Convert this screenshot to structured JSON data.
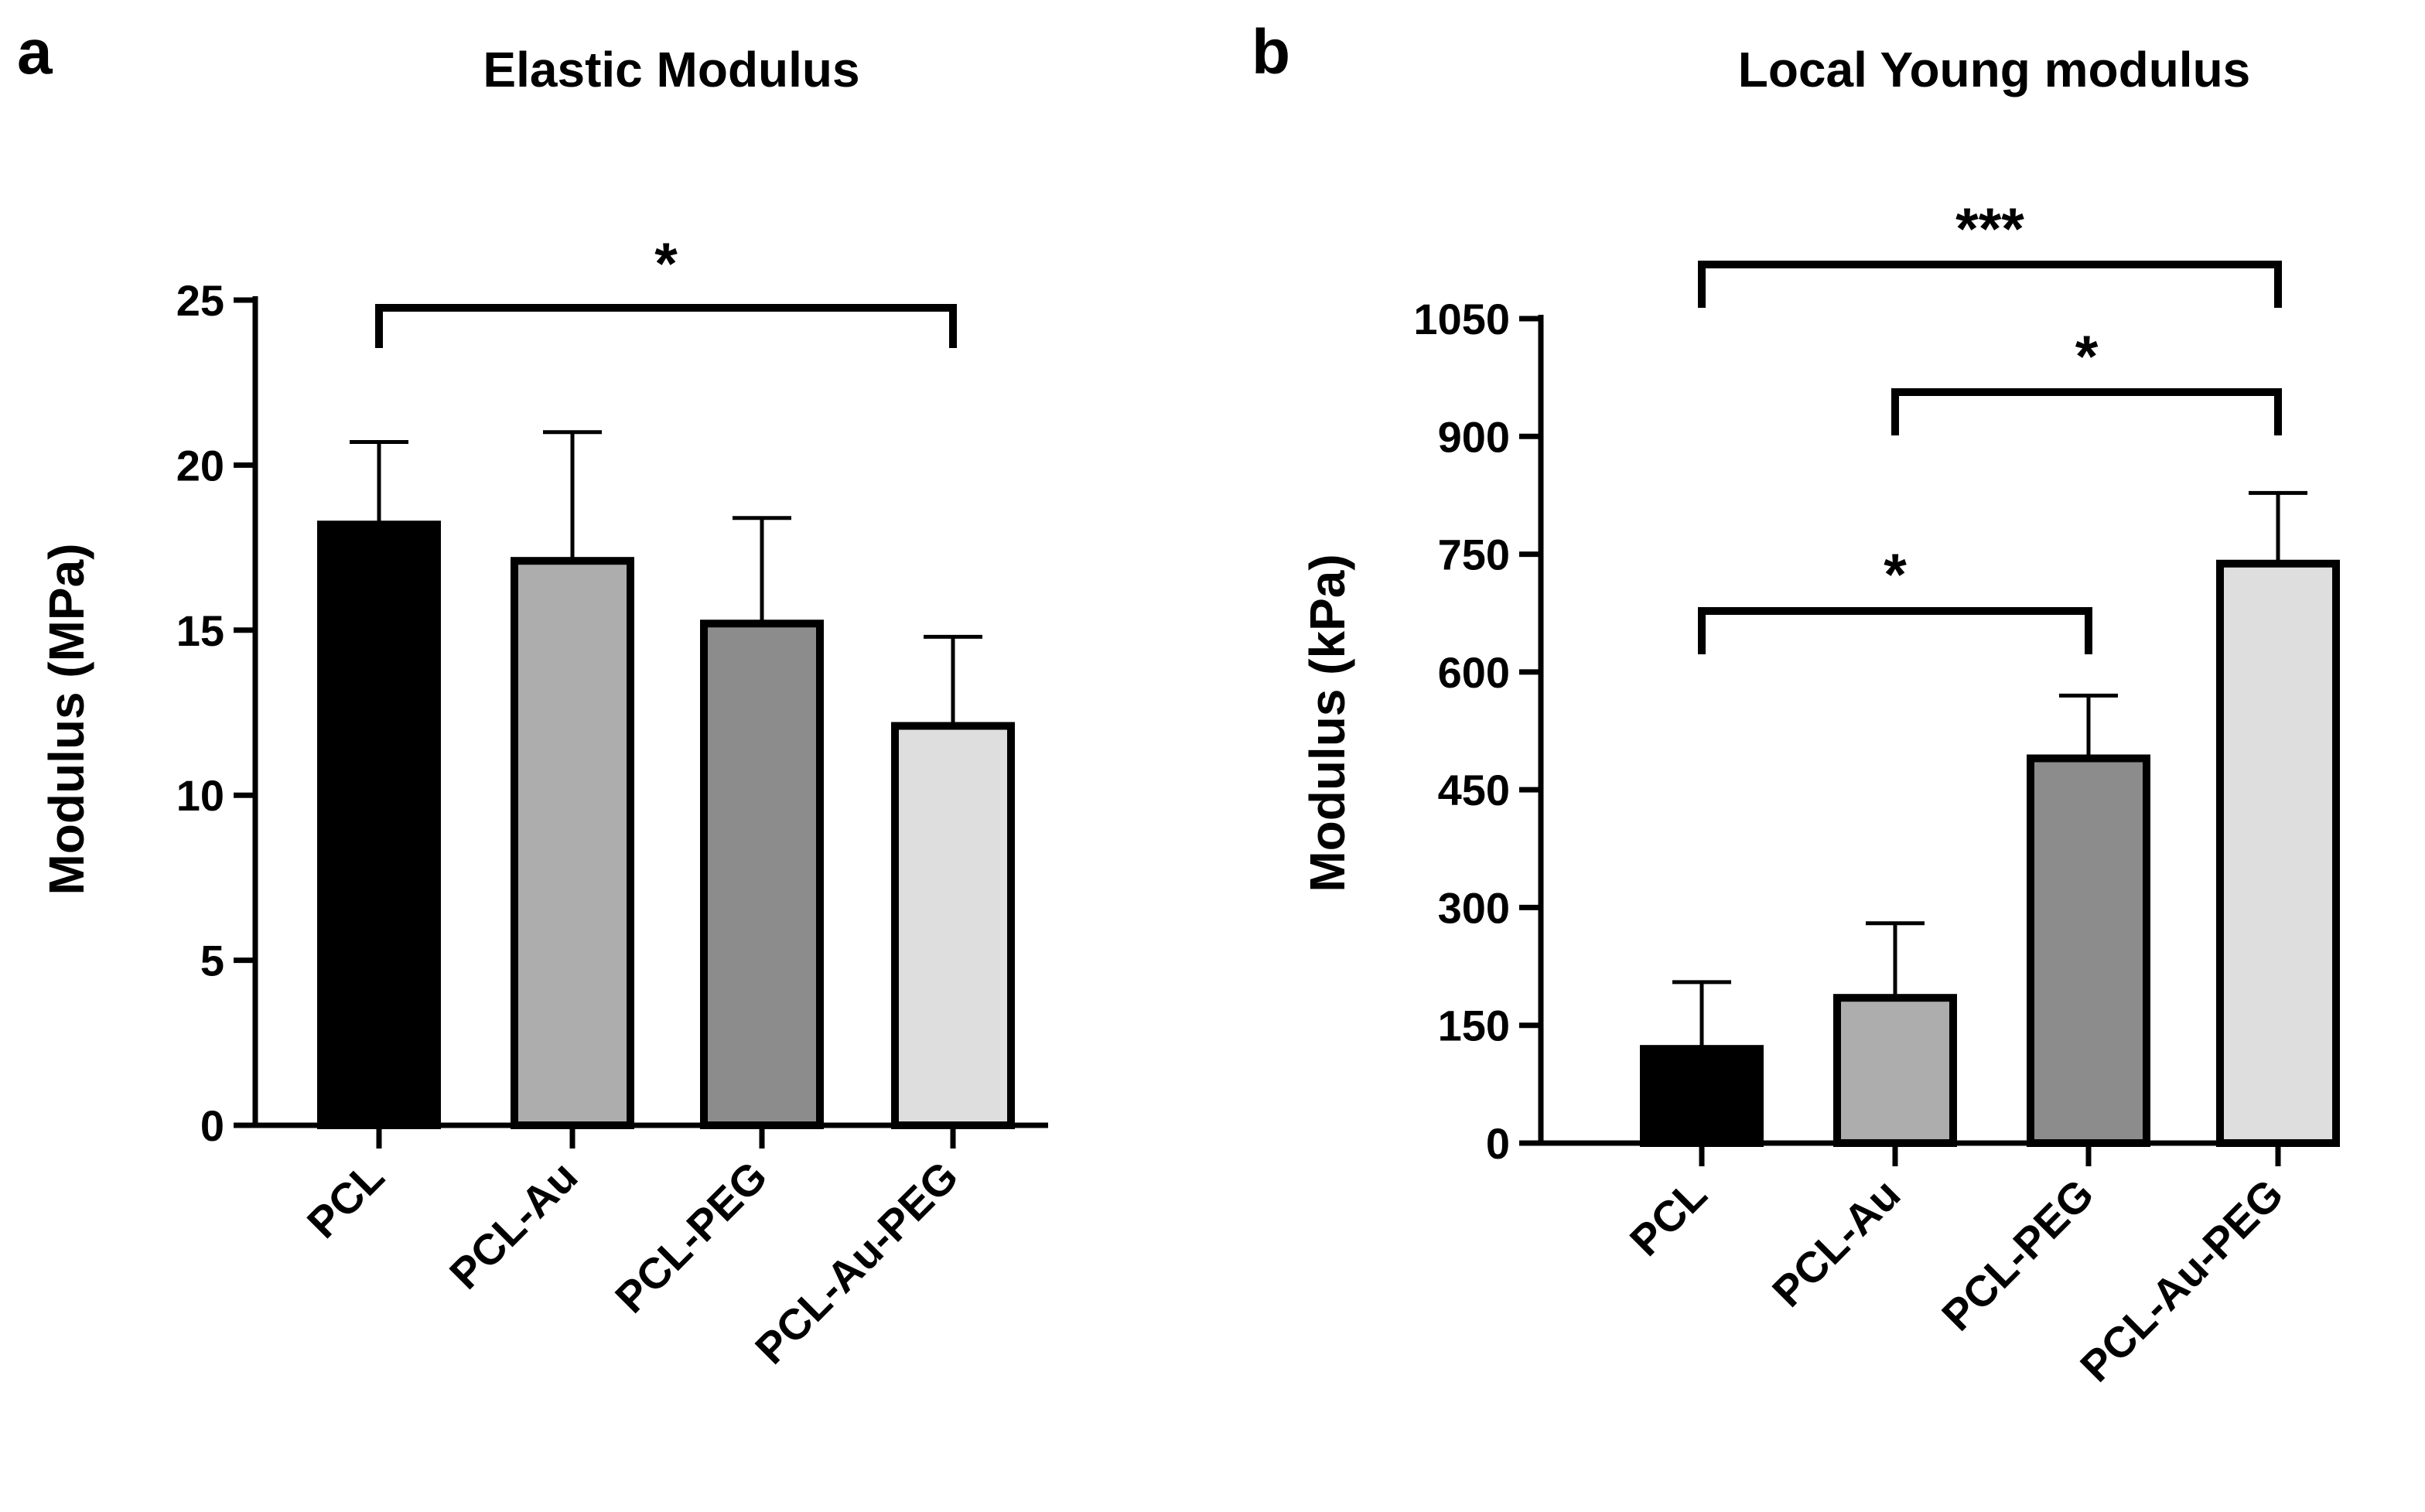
{
  "panels": [
    {
      "label": "a"
    },
    {
      "label": "b"
    }
  ],
  "chart_data": [
    {
      "type": "bar",
      "title": "Elastic Modulus",
      "xlabel": "",
      "ylabel": "Modulus (MPa)",
      "categories": [
        "PCL",
        "PCL-Au",
        "PCL-PEG",
        "PCL-Au-PEG"
      ],
      "values": [
        18.2,
        17.1,
        15.2,
        12.1
      ],
      "errors": [
        2.5,
        3.9,
        3.2,
        2.7
      ],
      "colors": [
        "#000000",
        "#adadad",
        "#8c8c8c",
        "#dedede"
      ],
      "ylim": [
        0,
        25
      ],
      "yticks": [
        0,
        5,
        10,
        15,
        20,
        25
      ],
      "significance": [
        {
          "from": 0,
          "to": 3,
          "label": "*"
        }
      ]
    },
    {
      "type": "bar",
      "title": "Local Young modulus",
      "xlabel": "",
      "ylabel": "Modulus (kPa)",
      "categories": [
        "PCL",
        "PCL-Au",
        "PCL-PEG",
        "PCL-Au-PEG"
      ],
      "values": [
        120,
        185,
        490,
        738
      ],
      "errors": [
        85,
        95,
        80,
        90
      ],
      "colors": [
        "#000000",
        "#adadad",
        "#8c8c8c",
        "#dedede"
      ],
      "ylim": [
        0,
        1050
      ],
      "yticks": [
        0,
        150,
        300,
        450,
        600,
        750,
        900,
        1050
      ],
      "significance": [
        {
          "from": 0,
          "to": 3,
          "label": "***"
        },
        {
          "from": 1,
          "to": 3,
          "label": "*"
        },
        {
          "from": 0,
          "to": 2,
          "label": "*"
        }
      ]
    }
  ]
}
